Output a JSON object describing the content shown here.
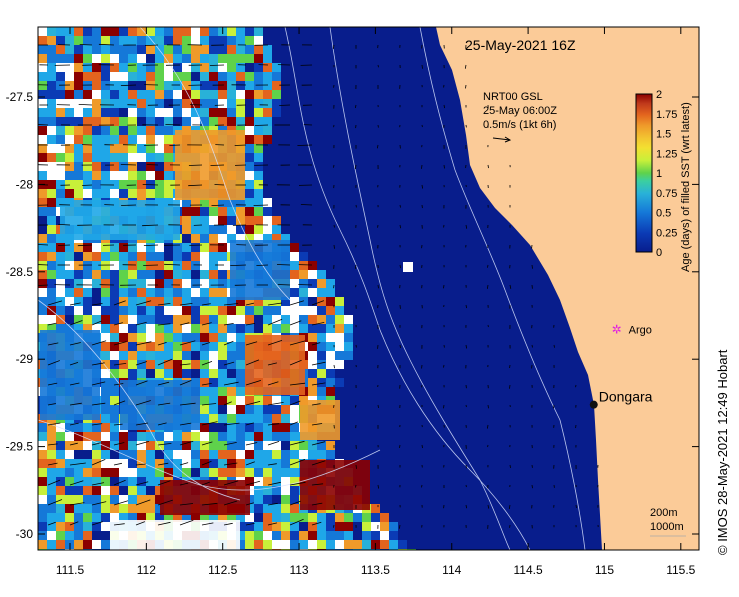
{
  "map": {
    "title": "25-May-2021 16Z",
    "product": {
      "line1": "NRT00 GSL",
      "line2": "25-May 06:00Z",
      "line3": "0.5m/s (1kt 6h)"
    },
    "colorbar": {
      "label": "Age (days) of filled SST (wrt latest)",
      "ticks": [
        "2",
        "1.75",
        "1.5",
        "1.25",
        "1",
        "0.75",
        "0.5",
        "0.25",
        "0"
      ],
      "colors": [
        "#8b0000",
        "#c0391b",
        "#e3641e",
        "#ef9a2a",
        "#f3c531",
        "#c8f03a",
        "#5fd24b",
        "#29b1d8",
        "#1fa7e8",
        "#1578d8",
        "#0b3bb5",
        "#081d8c"
      ]
    },
    "lon_ticks": [
      "111.5",
      "112",
      "112.5",
      "113",
      "113.5",
      "114",
      "114.5",
      "115",
      "115.5"
    ],
    "lat_ticks": [
      "-27.5",
      "-28",
      "-28.5",
      "-29",
      "-29.5",
      "-30"
    ],
    "places": [
      {
        "name": "Dongara",
        "lon": 114.93,
        "lat": -29.26
      },
      {
        "name": "Argo",
        "lon": 115.08,
        "lat": -28.83
      }
    ],
    "contours": {
      "line1": "200m",
      "line2": "1000m"
    },
    "credit": "© IMOS 28-May-2021 12:49 Hobart",
    "colors": {
      "ocean": "#081d8c",
      "land": "#fbcb98",
      "argo": "#e020e0"
    }
  }
}
